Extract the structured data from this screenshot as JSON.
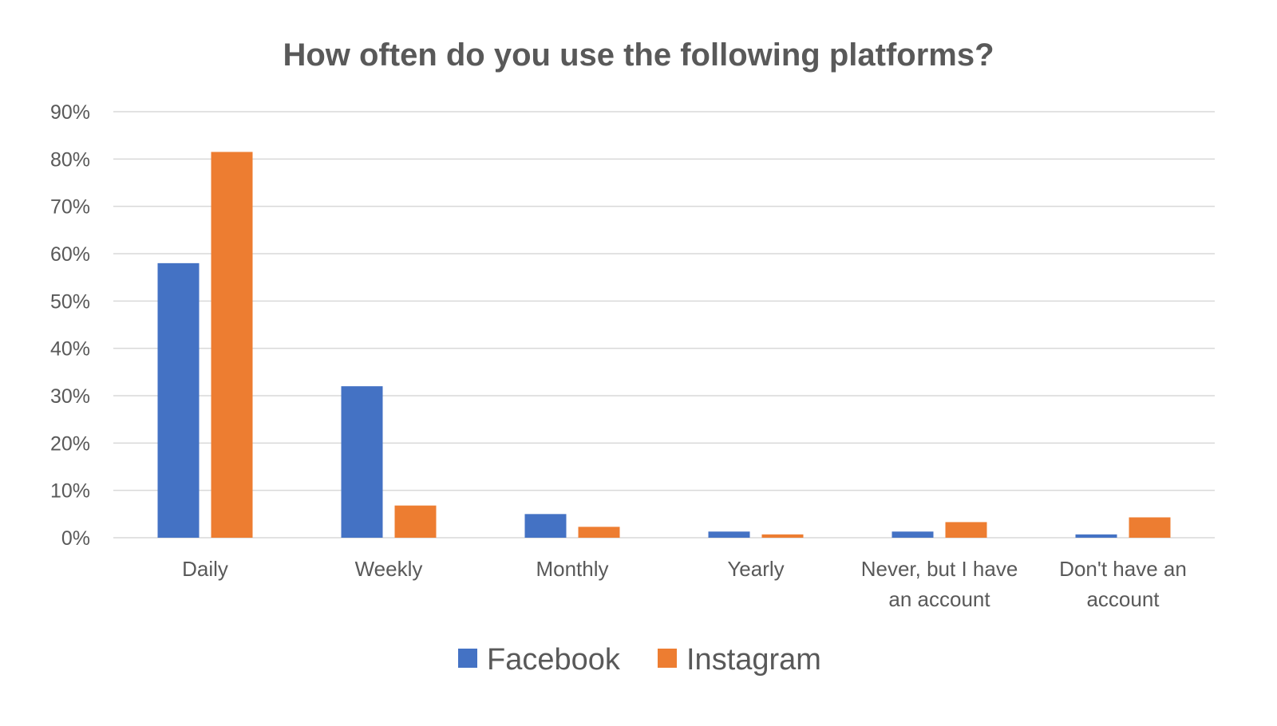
{
  "chart_data": {
    "type": "bar",
    "title": "How often do you use the following platforms?",
    "xlabel": "",
    "ylabel": "",
    "ylim": [
      0,
      90
    ],
    "y_ticks": [
      "0%",
      "10%",
      "20%",
      "30%",
      "40%",
      "50%",
      "60%",
      "70%",
      "80%",
      "90%"
    ],
    "y_tick_values": [
      0,
      10,
      20,
      30,
      40,
      50,
      60,
      70,
      80,
      90
    ],
    "grid": true,
    "legend_position": "bottom",
    "categories": [
      [
        "Daily"
      ],
      [
        "Weekly"
      ],
      [
        "Monthly"
      ],
      [
        "Yearly"
      ],
      [
        "Never, but I have",
        "an account"
      ],
      [
        "Don't have an",
        "account"
      ]
    ],
    "series": [
      {
        "name": "Facebook",
        "color": "#4472C4",
        "values": [
          58,
          32,
          5,
          1.3,
          1.3,
          0.7
        ]
      },
      {
        "name": "Instagram",
        "color": "#ED7D31",
        "values": [
          81.5,
          6.8,
          2.3,
          0.7,
          3.3,
          4.3
        ]
      }
    ]
  }
}
